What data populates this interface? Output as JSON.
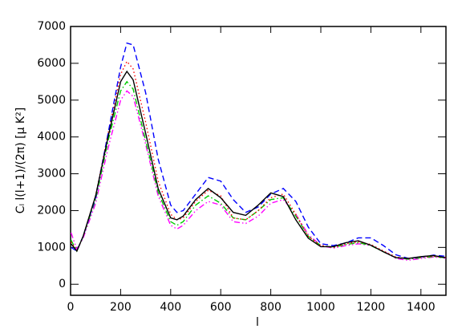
{
  "chart_data": {
    "type": "line",
    "x_label": "l",
    "y_label": "Cₗ l(l+1)/(2π) [μ K²]",
    "x": [
      2,
      25,
      50,
      100,
      150,
      200,
      225,
      250,
      300,
      350,
      400,
      425,
      450,
      500,
      550,
      600,
      650,
      700,
      750,
      800,
      850,
      900,
      950,
      1000,
      1050,
      1100,
      1150,
      1200,
      1250,
      1300,
      1350,
      1400,
      1450,
      1500
    ],
    "series": [
      {
        "color": "#000000",
        "linestyle": "solid",
        "values": [
          1100,
          900,
          1300,
          2400,
          4000,
          5500,
          5780,
          5550,
          4100,
          2600,
          1800,
          1750,
          1850,
          2300,
          2600,
          2350,
          1950,
          1870,
          2150,
          2480,
          2380,
          1750,
          1250,
          1020,
          1020,
          1130,
          1180,
          1060,
          880,
          720,
          700,
          750,
          780,
          720
        ]
      },
      {
        "color": "#0000ff",
        "linestyle": "dashed",
        "values": [
          1000,
          900,
          1300,
          2350,
          4100,
          5900,
          6550,
          6500,
          5200,
          3400,
          2150,
          1950,
          2000,
          2450,
          2900,
          2800,
          2300,
          1950,
          2100,
          2450,
          2600,
          2250,
          1550,
          1100,
          1050,
          1120,
          1260,
          1260,
          1050,
          800,
          700,
          740,
          790,
          760
        ]
      },
      {
        "color": "#ff0000",
        "linestyle": "dotted",
        "values": [
          1150,
          900,
          1300,
          2400,
          4100,
          5700,
          6050,
          5850,
          4400,
          2800,
          1900,
          1750,
          1800,
          2250,
          2550,
          2400,
          1800,
          1750,
          2000,
          2350,
          2450,
          1900,
          1300,
          1050,
          1000,
          1100,
          1150,
          1080,
          900,
          740,
          690,
          730,
          760,
          730
        ]
      },
      {
        "color": "#00cc00",
        "linestyle": "dashdot",
        "values": [
          1200,
          900,
          1300,
          2300,
          3900,
          5250,
          5500,
          5300,
          3900,
          2500,
          1700,
          1600,
          1700,
          2150,
          2400,
          2200,
          1800,
          1750,
          2000,
          2300,
          2350,
          1850,
          1300,
          1050,
          1000,
          1080,
          1130,
          1050,
          880,
          720,
          680,
          720,
          750,
          720
        ]
      },
      {
        "color": "#ff00ff",
        "linestyle": "dashdotdot",
        "values": [
          1400,
          950,
          1250,
          2200,
          3700,
          5000,
          5250,
          5100,
          3800,
          2400,
          1600,
          1500,
          1600,
          2000,
          2250,
          2150,
          1700,
          1650,
          1850,
          2200,
          2300,
          1900,
          1350,
          1050,
          980,
          1050,
          1100,
          1050,
          900,
          700,
          650,
          700,
          740,
          710
        ]
      }
    ],
    "xlim": [
      0,
      1500
    ],
    "xticks": [
      0,
      200,
      400,
      600,
      800,
      1000,
      1200,
      1400
    ],
    "ylim": [
      -300,
      7000
    ],
    "yticks": [
      0,
      1000,
      2000,
      3000,
      4000,
      5000,
      6000,
      7000
    ]
  }
}
